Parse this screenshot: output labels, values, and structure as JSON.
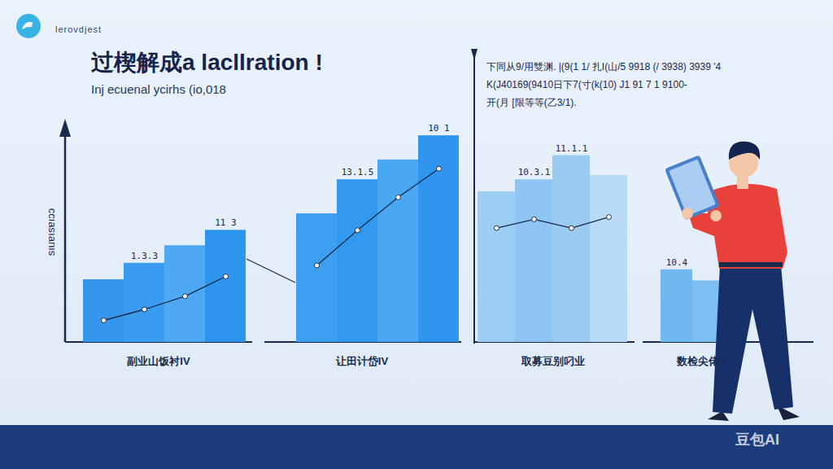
{
  "header": {
    "logo_text": "lerovdjest",
    "title": "过楔解成a lacllration !",
    "subtitle": "Inj ecuenal  ycirhs (io,018",
    "note": [
      "下同从9/用雙渊. |(9(1 1/ 扎I(山/5 9918 (/ 3938) 3939 '4",
      "K(J40169(9410日下7(寸(k(10) J1 91 7 1 9100-",
      "开(月 [限等等(乙3/1)."
    ]
  },
  "watermark": "豆包AI",
  "chart_data": [
    {
      "type": "bar",
      "title": "副业山饭衬IV",
      "y_label": "sıuɐısɐıɔɔ",
      "categories": [
        null,
        null,
        null,
        null
      ],
      "values": [
        28.5,
        36,
        44,
        51
      ],
      "colors": [
        "#3596ee",
        "#3a9bef",
        "#4ea9f2",
        "#2e95ef"
      ],
      "line_values": [
        10,
        15,
        21,
        30
      ],
      "annotations": [
        {
          "bar": 1,
          "text": "1.3.3"
        },
        {
          "bar": 3,
          "text": "11 3"
        }
      ],
      "ylim": [
        0,
        100
      ],
      "tick_labels": false
    },
    {
      "type": "bar",
      "title": "让田计岱IV",
      "categories": [
        null,
        null,
        null,
        null
      ],
      "values": [
        58.5,
        74,
        83,
        94
      ],
      "colors": [
        "#3d9ff0",
        "#3199ef",
        "#4aa8f3",
        "#2f95ee"
      ],
      "line_values": [
        35,
        51,
        66,
        79
      ],
      "annotations": [
        {
          "bar": 1,
          "text": "13.1.5"
        },
        {
          "bar": 3,
          "text": "10 1"
        }
      ],
      "ylim": [
        0,
        100
      ],
      "tick_labels": false
    },
    {
      "type": "bar",
      "title": "取募豆别叼业",
      "categories": [
        null,
        null,
        null,
        null
      ],
      "values": [
        68.5,
        74,
        85,
        76
      ],
      "colors": [
        "#9ccdf3",
        "#8ec5f2",
        "#9bcbf1",
        "#b9dbf5"
      ],
      "line_values": [
        52,
        56,
        52,
        57
      ],
      "annotations": [
        {
          "bar": 1,
          "text": "10.3.1"
        },
        {
          "bar": 2,
          "text": "11.1.1"
        }
      ],
      "ylim": [
        0,
        100
      ],
      "tick_labels": false
    },
    {
      "type": "bar",
      "title": "数检尖佬 !",
      "categories": [
        null,
        null
      ],
      "values": [
        33,
        28
      ],
      "colors": [
        "#6fb8f1",
        "#7ebff3"
      ],
      "annotations": [
        {
          "bar": 0,
          "text": "10.4"
        }
      ],
      "ylim": [
        0,
        100
      ],
      "tick_labels": false
    }
  ]
}
